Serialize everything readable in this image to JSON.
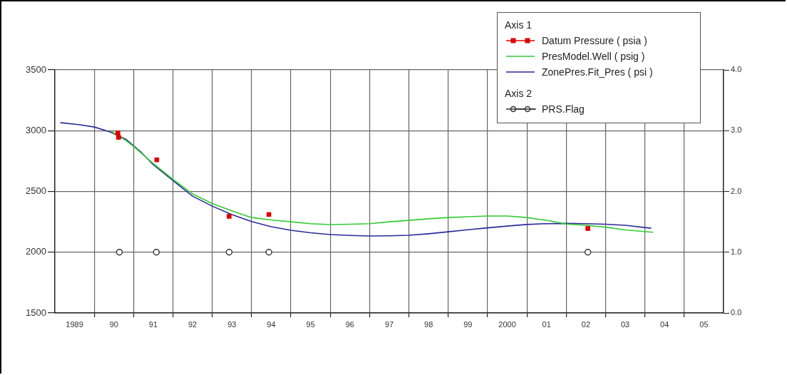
{
  "chart_data": {
    "type": "line",
    "legend": "top right",
    "legend_title": "Axis 1",
    "grid": true,
    "annotations": [
      "Axis 2"
    ],
    "xlim": [
      1988.5,
      2005.5
    ],
    "xticks": [
      {
        "value": 1989,
        "label": "1989"
      },
      {
        "value": 1989.5,
        "label": null
      },
      {
        "value": 1990,
        "label": "90"
      },
      {
        "value": 1990.5,
        "label": null
      },
      {
        "value": 1991,
        "label": "91"
      },
      {
        "value": 1991.5,
        "label": null
      },
      {
        "value": 1992,
        "label": "92"
      },
      {
        "value": 1992.5,
        "label": null
      },
      {
        "value": 1993,
        "label": "93"
      },
      {
        "value": 1993.5,
        "label": null
      },
      {
        "value": 1994,
        "label": "94"
      },
      {
        "value": 1994.5,
        "label": null
      },
      {
        "value": 1995,
        "label": "95"
      },
      {
        "value": 1995.5,
        "label": null
      },
      {
        "value": 1996,
        "label": "96"
      },
      {
        "value": 1996.5,
        "label": null
      },
      {
        "value": 1997,
        "label": "97"
      },
      {
        "value": 1997.5,
        "label": null
      },
      {
        "value": 1998,
        "label": "98"
      },
      {
        "value": 1998.5,
        "label": null
      },
      {
        "value": 1999,
        "label": "99"
      },
      {
        "value": 1999.5,
        "label": null
      },
      {
        "value": 2000,
        "label": "2000"
      },
      {
        "value": 2000.5,
        "label": null
      },
      {
        "value": 2001,
        "label": "01"
      },
      {
        "value": 2001.5,
        "label": null
      },
      {
        "value": 2002,
        "label": "02"
      },
      {
        "value": 2002.5,
        "label": null
      },
      {
        "value": 2003,
        "label": "03"
      },
      {
        "value": 2003.5,
        "label": null
      },
      {
        "value": 2004,
        "label": "04"
      },
      {
        "value": 2004.5,
        "label": null
      },
      {
        "value": 2005,
        "label": "05"
      }
    ],
    "ylim": [
      1500,
      3500
    ],
    "yticks": [
      1500,
      2000,
      2500,
      3000,
      3500
    ],
    "y2lim": [
      0,
      4
    ],
    "y2ticks": [
      {
        "value": 0,
        "label": "0.0"
      },
      {
        "value": 1,
        "label": "1.0"
      },
      {
        "value": 2,
        "label": "2.0"
      },
      {
        "value": 3,
        "label": "3.0"
      },
      {
        "value": 4,
        "label": "4.0"
      }
    ],
    "series": [
      {
        "name": "Datum Pressure ( psia )",
        "type": "scatter",
        "marker": "square",
        "color": "#e00000",
        "x": [
          1990.1,
          1990.12,
          1991.09,
          1992.93,
          1993.94,
          2002.05
        ],
        "values": [
          2980,
          2945,
          2760,
          2295,
          2310,
          2195
        ]
      },
      {
        "name": "PresModel.Well ( psig )",
        "type": "line",
        "marker": "none",
        "color": "#33cc33",
        "x": [
          1989.95,
          1990.3,
          1990.5,
          1991.0,
          1991.5,
          1992.0,
          1992.5,
          1993.0,
          1993.5,
          1994.0,
          1994.5,
          1995.0,
          1995.5,
          1996.0,
          1996.5,
          1997.0,
          1997.5,
          1998.0,
          1998.5,
          1999.0,
          1999.5,
          2000.0,
          2000.5,
          2001.0,
          2001.5,
          2002.0,
          2002.5,
          2003.0,
          2003.7
        ],
        "values": [
          2990,
          2920,
          2870,
          2730,
          2600,
          2480,
          2400,
          2340,
          2285,
          2265,
          2250,
          2235,
          2227,
          2230,
          2235,
          2250,
          2262,
          2275,
          2285,
          2292,
          2298,
          2298,
          2285,
          2262,
          2232,
          2221,
          2206,
          2183,
          2164
        ]
      },
      {
        "name": "ZonePres.Fit_Pres ( psi )",
        "type": "line",
        "marker": "none",
        "color": "#2a2a9a",
        "x": [
          1988.65,
          1989.1,
          1989.5,
          1989.9,
          1990.3,
          1990.7,
          1991.0,
          1991.5,
          1992.0,
          1992.5,
          1993.0,
          1993.5,
          1994.0,
          1994.5,
          1995.0,
          1995.5,
          1996.0,
          1996.5,
          1997.0,
          1997.5,
          1998.0,
          1998.5,
          1999.0,
          1999.5,
          2000.0,
          2000.5,
          2001.0,
          2001.5,
          2002.0,
          2002.5,
          2003.0,
          2003.65
        ],
        "values": [
          3065,
          3050,
          3030,
          2990,
          2930,
          2820,
          2720,
          2590,
          2461,
          2379,
          2310,
          2252,
          2210,
          2180,
          2160,
          2145,
          2138,
          2133,
          2135,
          2139,
          2152,
          2168,
          2185,
          2200,
          2215,
          2228,
          2235,
          2237,
          2235,
          2230,
          2221,
          2197
        ]
      },
      {
        "name": "PRS.Flag",
        "type": "scatter",
        "marker": "circle",
        "axis": "y2",
        "color": "#333333",
        "x": [
          1990.14,
          1991.08,
          1992.93,
          1993.94,
          2002.05
        ],
        "values": [
          1,
          1,
          1,
          1,
          1
        ]
      }
    ]
  }
}
